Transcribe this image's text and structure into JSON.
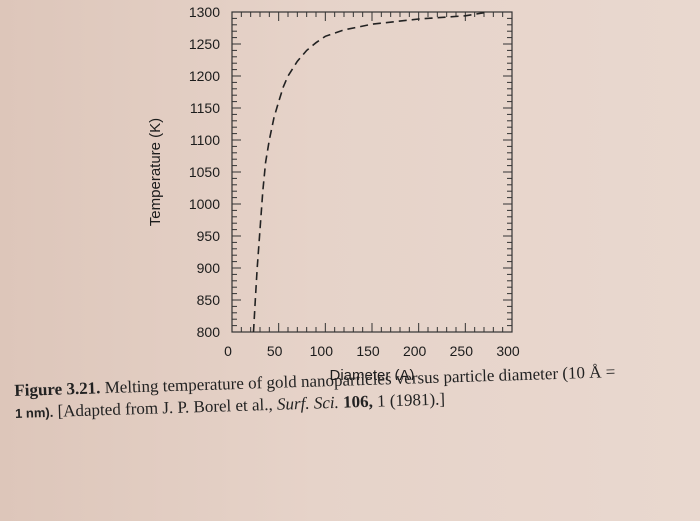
{
  "chart_data": {
    "type": "line",
    "xlabel": "Diameter (A)",
    "ylabel": "Temperature (K)",
    "xlim": [
      0,
      300
    ],
    "ylim": [
      800,
      1300
    ],
    "x_ticks": [
      "0",
      "50",
      "100",
      "150",
      "200",
      "250",
      "300"
    ],
    "y_ticks": [
      "800",
      "850",
      "900",
      "950",
      "1000",
      "1050",
      "1100",
      "1150",
      "1200",
      "1250",
      "1300"
    ],
    "series": [
      {
        "style": "dashed",
        "x": [
          23,
          25,
          27,
          30,
          33,
          36,
          40,
          45,
          50,
          55,
          60,
          70,
          80,
          90,
          100,
          120,
          150,
          200,
          250,
          275
        ],
        "y": [
          800,
          850,
          900,
          960,
          1020,
          1065,
          1100,
          1135,
          1160,
          1183,
          1200,
          1223,
          1240,
          1252,
          1262,
          1272,
          1281,
          1289,
          1294,
          1300
        ]
      }
    ],
    "grid": false
  },
  "caption": {
    "label": "Figure 3.21.",
    "text_before": "Melting temperature of gold nanoparticles versus particle diameter (10 Å =",
    "line2_unit": "1 nm).",
    "line2_text": "[Adapted from J. P. Borel et al.,",
    "journal": "Surf. Sci.",
    "volume": "106,",
    "pages": "1 (1981).]"
  }
}
